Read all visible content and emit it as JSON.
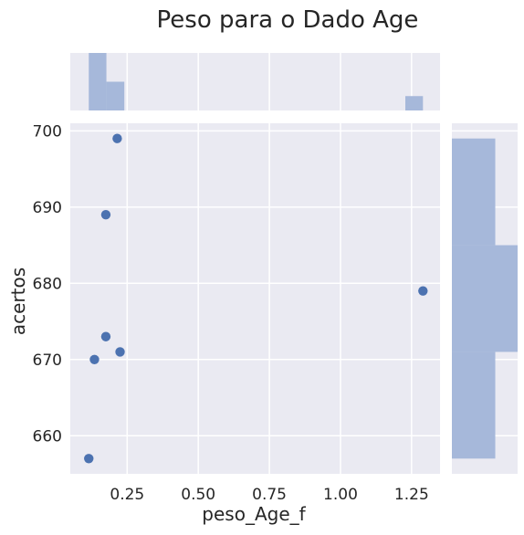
{
  "chart_data": {
    "type": "scatter",
    "title": "Peso para o Dado Age",
    "xlabel": "peso_Age_f",
    "ylabel": "acertos",
    "xlim": [
      0.05,
      1.35
    ],
    "ylim": [
      655,
      701
    ],
    "xticks": [
      0.25,
      0.5,
      0.75,
      1.0,
      1.25
    ],
    "xtick_labels": [
      "0.25",
      "0.50",
      "0.75",
      "1.00",
      "1.25"
    ],
    "yticks": [
      660,
      670,
      680,
      690,
      700
    ],
    "ytick_labels": [
      "660",
      "670",
      "680",
      "690",
      "700"
    ],
    "grid": true,
    "points": [
      {
        "x": 0.215,
        "y": 699
      },
      {
        "x": 0.175,
        "y": 689
      },
      {
        "x": 1.29,
        "y": 679
      },
      {
        "x": 0.175,
        "y": 673
      },
      {
        "x": 0.225,
        "y": 671
      },
      {
        "x": 0.135,
        "y": 670
      },
      {
        "x": 0.115,
        "y": 657
      }
    ],
    "x_marginal_hist": {
      "bins": [
        {
          "x0": 0.115,
          "x1": 0.177,
          "height": 1.0
        },
        {
          "x0": 0.177,
          "x1": 0.24,
          "height": 0.5
        },
        {
          "x0": 1.228,
          "x1": 1.29,
          "height": 0.25
        }
      ]
    },
    "y_marginal_hist": {
      "bins": [
        {
          "y0": 657,
          "y1": 671,
          "width": 0.66
        },
        {
          "y0": 671,
          "y1": 685,
          "width": 1.0
        },
        {
          "y0": 685,
          "y1": 699,
          "width": 0.66
        }
      ]
    },
    "colors": {
      "background": "#eaeaf2",
      "grid": "#ffffff",
      "point": "#4c72b0",
      "hist": "#a6b8da",
      "text": "#262626"
    }
  }
}
